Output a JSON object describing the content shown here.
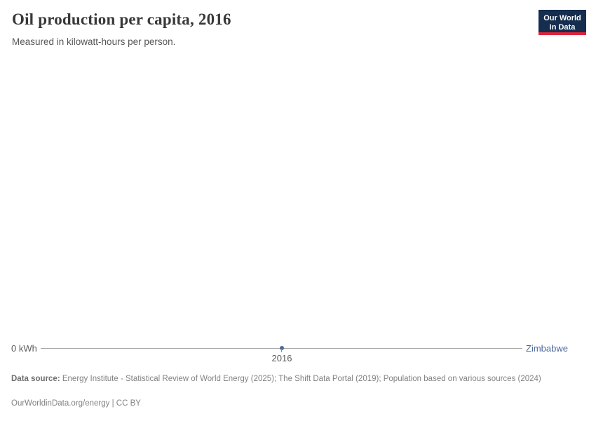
{
  "header": {
    "title": "Oil production per capita, 2016",
    "subtitle": "Measured in kilowatt-hours per person.",
    "logo": {
      "line1": "Our World",
      "line2": "in Data"
    }
  },
  "chart_data": {
    "type": "line",
    "title": "Oil production per capita, 2016",
    "subtitle": "Measured in kilowatt-hours per person.",
    "x": [
      2016
    ],
    "series": [
      {
        "name": "Zimbabwe",
        "values": [
          0
        ],
        "color": "#4c6a9c"
      }
    ],
    "xlabel": "",
    "ylabel": "kilowatt-hours per person",
    "ylim": [
      0,
      0
    ],
    "x_tick_labels": [
      "2016"
    ],
    "y_tick_labels": [
      "0 kWh"
    ],
    "grid": false,
    "legend_position": "right-of-line"
  },
  "axis": {
    "y_zero_label": "0 kWh",
    "x_tick_label": "2016",
    "entity_label": "Zimbabwe"
  },
  "footer": {
    "source_label": "Data source:",
    "source_text": " Energy Institute - Statistical Review of World Energy (2025); The Shift Data Portal (2019); Population based on various sources (2024)",
    "link_line": "OurWorldinData.org/energy | CC BY"
  },
  "colors": {
    "accent_blue": "#4c6a9c",
    "logo_navy": "#152d4f",
    "logo_red": "#e0233c",
    "axis_line": "#a5a5a5",
    "title_text": "#383838",
    "muted_text": "#5b5b5b",
    "footer_text": "#828282"
  }
}
